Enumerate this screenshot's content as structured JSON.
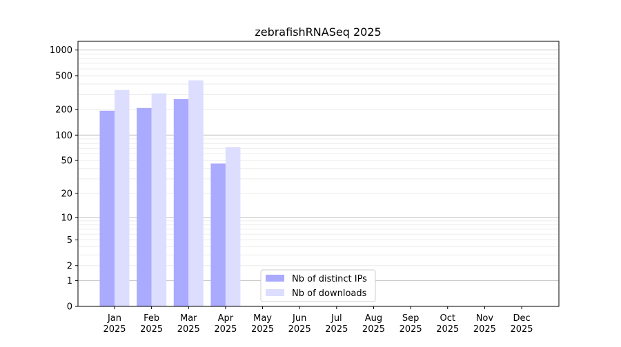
{
  "chart_data": {
    "type": "bar",
    "title": "zebrafishRNASeq 2025",
    "xlabel": "",
    "ylabel": "",
    "yscale": "log(1+y)",
    "ylim": [
      0,
      1300
    ],
    "yticks": [
      0,
      1,
      2,
      5,
      10,
      20,
      50,
      100,
      200,
      500,
      1000
    ],
    "grid": true,
    "legend_position": "lower-center",
    "categories": [
      "Jan\n2025",
      "Feb\n2025",
      "Mar\n2025",
      "Apr\n2025",
      "May\n2025",
      "Jun\n2025",
      "Jul\n2025",
      "Aug\n2025",
      "Sep\n2025",
      "Oct\n2025",
      "Nov\n2025",
      "Dec\n2025"
    ],
    "series": [
      {
        "name": "Nb of distinct IPs",
        "color": "#aaaaff",
        "values": [
          194,
          209,
          266,
          46,
          0,
          0,
          0,
          0,
          0,
          0,
          0,
          0
        ]
      },
      {
        "name": "Nb of downloads",
        "color": "#ddddff",
        "values": [
          340,
          310,
          441,
          72,
          0,
          0,
          0,
          0,
          0,
          0,
          0,
          0
        ]
      }
    ]
  }
}
